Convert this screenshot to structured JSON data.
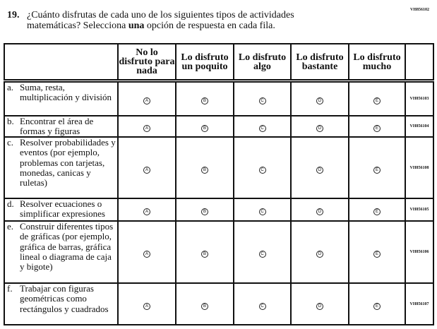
{
  "question": {
    "id": "VH856102",
    "number": "19.",
    "text_before": "¿Cuánto disfrutas de cada uno de los siguientes tipos de actividades matemáticas? Selecciona ",
    "text_bold": "una",
    "text_after": " opción de respuesta en cada fila."
  },
  "columns": [
    "No lo disfruto para nada",
    "Lo disfruto un poquito",
    "Lo disfruto algo",
    "Lo disfruto bastante",
    "Lo disfruto mucho"
  ],
  "option_letters": [
    "A",
    "B",
    "C",
    "D",
    "E"
  ],
  "rows": [
    {
      "letter": "a.",
      "text": "Suma, resta, multiplicación y división",
      "code": "VH856103"
    },
    {
      "letter": "b.",
      "text": "Encontrar el área de formas y figuras",
      "code": "VH856104"
    },
    {
      "letter": "c.",
      "text": "Resolver probabilidades y eventos (por ejemplo, problemas con tarjetas, monedas, canicas y ruletas)",
      "code": "VH856108"
    },
    {
      "letter": "d.",
      "text": "Resolver ecuaciones o simplificar expresiones",
      "code": "VH856105"
    },
    {
      "letter": "e.",
      "text": "Construir diferentes tipos de gráficas (por ejemplo, gráfica de barras, gráfica lineal o diagrama de caja y bigote)",
      "code": "VH856106"
    },
    {
      "letter": "f.",
      "text": "Trabajar con figuras geométricas como rectángulos y cuadrados",
      "code": "VH856107"
    }
  ]
}
